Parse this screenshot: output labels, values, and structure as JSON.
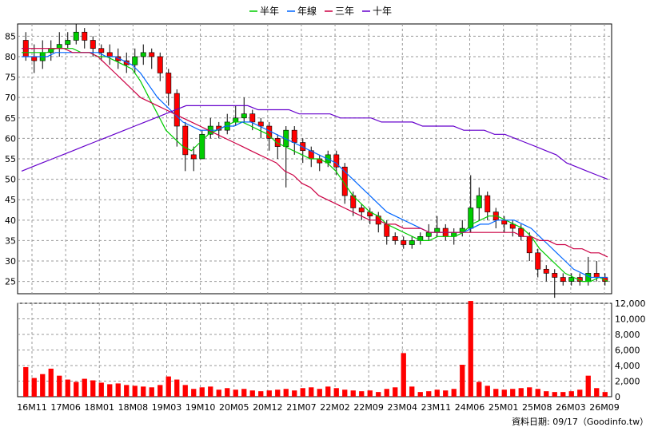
{
  "chart_data": {
    "type": "candlestick",
    "legend": [
      {
        "name": "半年",
        "color": "#00cc00"
      },
      {
        "name": "年線",
        "color": "#0066ff"
      },
      {
        "name": "三年",
        "color": "#cc0044"
      },
      {
        "name": "十年",
        "color": "#6600cc"
      }
    ],
    "price_axis": {
      "ylim": [
        22,
        88
      ],
      "ticks": [
        25,
        30,
        35,
        40,
        45,
        50,
        55,
        60,
        65,
        70,
        75,
        80,
        85
      ]
    },
    "volume_axis": {
      "ylim": [
        0,
        12000
      ],
      "ticks": [
        0,
        2000,
        4000,
        6000,
        8000,
        10000,
        12000
      ],
      "tick_labels": [
        "0",
        "2,000",
        "4,000",
        "6,000",
        "8,000",
        "10,000",
        "12,000"
      ]
    },
    "x_ticks": [
      "16M11",
      "17M06",
      "18M01",
      "18M08",
      "19M03",
      "19M10",
      "20M05",
      "20M12",
      "21M07",
      "22M02",
      "22M09",
      "23M04",
      "23M11",
      "24M06",
      "25M01",
      "25M08",
      "26M03",
      "26M09"
    ],
    "grid": true,
    "colors": {
      "up": "#00cc00",
      "down": "#ff0000",
      "volume": "#ff0000",
      "grid": "#999999"
    },
    "candles": [
      [
        84,
        80,
        86,
        79
      ],
      [
        80,
        79,
        83,
        76
      ],
      [
        79,
        81,
        84,
        77
      ],
      [
        81,
        82,
        84,
        79
      ],
      [
        82,
        83,
        86,
        80
      ],
      [
        83,
        84,
        86,
        82
      ],
      [
        84,
        86,
        88,
        83
      ],
      [
        86,
        84,
        87,
        82
      ],
      [
        84,
        82,
        85,
        80
      ],
      [
        82,
        81,
        83,
        79
      ],
      [
        81,
        80,
        83,
        78
      ],
      [
        80,
        79,
        82,
        77
      ],
      [
        79,
        78,
        81,
        76
      ],
      [
        78,
        80,
        82,
        76
      ],
      [
        80,
        81,
        83,
        78
      ],
      [
        81,
        80,
        82,
        77
      ],
      [
        80,
        76,
        81,
        74
      ],
      [
        76,
        71,
        77,
        68
      ],
      [
        71,
        63,
        72,
        58
      ],
      [
        63,
        56,
        64,
        52
      ],
      [
        56,
        55,
        58,
        52
      ],
      [
        55,
        61,
        62,
        55
      ],
      [
        61,
        63,
        65,
        60
      ],
      [
        63,
        62,
        64,
        60
      ],
      [
        62,
        64,
        66,
        61
      ],
      [
        64,
        65,
        68,
        63
      ],
      [
        65,
        66,
        70,
        64
      ],
      [
        66,
        64,
        67,
        62
      ],
      [
        64,
        63,
        65,
        60
      ],
      [
        63,
        60,
        64,
        57
      ],
      [
        60,
        58,
        61,
        55
      ],
      [
        58,
        62,
        63,
        48
      ],
      [
        62,
        59,
        63,
        56
      ],
      [
        59,
        57,
        60,
        54
      ],
      [
        57,
        55,
        58,
        53
      ],
      [
        55,
        54,
        56,
        52
      ],
      [
        54,
        56,
        57,
        53
      ],
      [
        56,
        53,
        57,
        51
      ],
      [
        53,
        46,
        54,
        44
      ],
      [
        46,
        43,
        47,
        41
      ],
      [
        43,
        42,
        44,
        40
      ],
      [
        42,
        41,
        43,
        39
      ],
      [
        41,
        39,
        42,
        37
      ],
      [
        39,
        36,
        40,
        34
      ],
      [
        36,
        35,
        37,
        34
      ],
      [
        35,
        34,
        36,
        33
      ],
      [
        34,
        35,
        36,
        33
      ],
      [
        35,
        36,
        37,
        34
      ],
      [
        36,
        37,
        39,
        35
      ],
      [
        37,
        38,
        41,
        36
      ],
      [
        38,
        36,
        39,
        35
      ],
      [
        36,
        37,
        38,
        34
      ],
      [
        37,
        38,
        40,
        36
      ],
      [
        38,
        43,
        51,
        37
      ],
      [
        43,
        46,
        48,
        40
      ],
      [
        46,
        42,
        47,
        40
      ],
      [
        42,
        40,
        43,
        38
      ],
      [
        40,
        39,
        41,
        37
      ],
      [
        39,
        38,
        40,
        36
      ],
      [
        38,
        36,
        39,
        35
      ],
      [
        36,
        32,
        37,
        30
      ],
      [
        32,
        28,
        33,
        26
      ],
      [
        28,
        27,
        29,
        25
      ],
      [
        27,
        26,
        28,
        21
      ],
      [
        26,
        25,
        27,
        24
      ],
      [
        25,
        26,
        27,
        24
      ],
      [
        26,
        25,
        27,
        24
      ],
      [
        25,
        27,
        31,
        24
      ],
      [
        27,
        26,
        30,
        25
      ],
      [
        26,
        25,
        27,
        24
      ]
    ],
    "volumes": [
      3800,
      2400,
      2900,
      3600,
      2700,
      2200,
      1900,
      2300,
      2100,
      1800,
      1600,
      1700,
      1500,
      1400,
      1300,
      1200,
      1500,
      2600,
      2200,
      1500,
      1000,
      1200,
      1300,
      900,
      1100,
      900,
      1000,
      800,
      700,
      800,
      900,
      1000,
      800,
      1100,
      1200,
      1000,
      1300,
      1100,
      900,
      800,
      700,
      800,
      600,
      1000,
      1200,
      5600,
      1300,
      600,
      700,
      900,
      800,
      1000,
      4100,
      12300,
      1900,
      1400,
      1000,
      900,
      1000,
      1100,
      1200,
      1000,
      700,
      600,
      600,
      700,
      900,
      2700,
      1100,
      600
    ],
    "series": [
      {
        "name": "半年",
        "values": [
          81,
          81,
          81,
          81,
          82,
          82,
          82,
          81,
          81,
          80,
          80,
          79,
          78,
          77,
          74,
          70,
          66,
          62,
          60,
          58,
          57,
          59,
          61,
          62,
          63,
          64,
          64,
          63,
          62,
          61,
          59,
          58,
          57,
          56,
          55,
          55,
          54,
          52,
          49,
          46,
          44,
          42,
          41,
          39,
          38,
          37,
          36,
          35,
          35,
          36,
          36,
          36,
          37,
          39,
          40,
          41,
          41,
          40,
          39,
          38,
          36,
          33,
          31,
          29,
          27,
          26,
          25,
          25,
          26,
          25
        ]
      },
      {
        "name": "年線",
        "values": [
          80,
          80,
          80,
          80,
          81,
          81,
          81,
          81,
          81,
          81,
          80,
          80,
          79,
          78,
          76,
          73,
          70,
          68,
          66,
          64,
          63,
          62,
          62,
          62,
          63,
          63,
          64,
          64,
          63,
          62,
          61,
          60,
          59,
          58,
          57,
          56,
          55,
          54,
          52,
          50,
          48,
          46,
          44,
          42,
          41,
          40,
          39,
          38,
          37,
          37,
          37,
          37,
          37,
          38,
          39,
          39,
          40,
          40,
          40,
          39,
          38,
          36,
          34,
          32,
          30,
          28,
          27,
          26,
          26,
          26
        ]
      },
      {
        "name": "三年",
        "values": [
          82,
          82,
          82,
          82,
          82,
          82,
          81,
          81,
          81,
          80,
          78,
          76,
          74,
          72,
          70,
          69,
          68,
          67,
          66,
          65,
          64,
          63,
          62,
          61,
          60,
          59,
          58,
          57,
          56,
          55,
          54,
          52,
          51,
          49,
          48,
          46,
          45,
          44,
          43,
          42,
          41,
          40,
          40,
          39,
          39,
          38,
          38,
          38,
          37,
          37,
          37,
          37,
          37,
          37,
          37,
          37,
          37,
          37,
          37,
          36,
          36,
          35,
          35,
          34,
          34,
          33,
          33,
          32,
          32,
          31
        ]
      },
      {
        "name": "十年",
        "values": [
          52,
          53,
          54,
          55,
          56,
          57,
          58,
          59,
          60,
          61,
          62,
          63,
          64,
          65,
          66,
          67,
          68,
          68,
          68,
          68,
          68,
          68,
          68,
          67,
          67,
          67,
          67,
          66,
          66,
          66,
          66,
          65,
          65,
          65,
          65,
          64,
          64,
          64,
          64,
          63,
          63,
          63,
          63,
          62,
          62,
          62,
          61,
          61,
          60,
          59,
          58,
          57,
          56,
          54,
          53,
          52,
          51,
          50
        ]
      }
    ],
    "source_label": "資料日期: 09/17（Goodinfo.tw）"
  }
}
